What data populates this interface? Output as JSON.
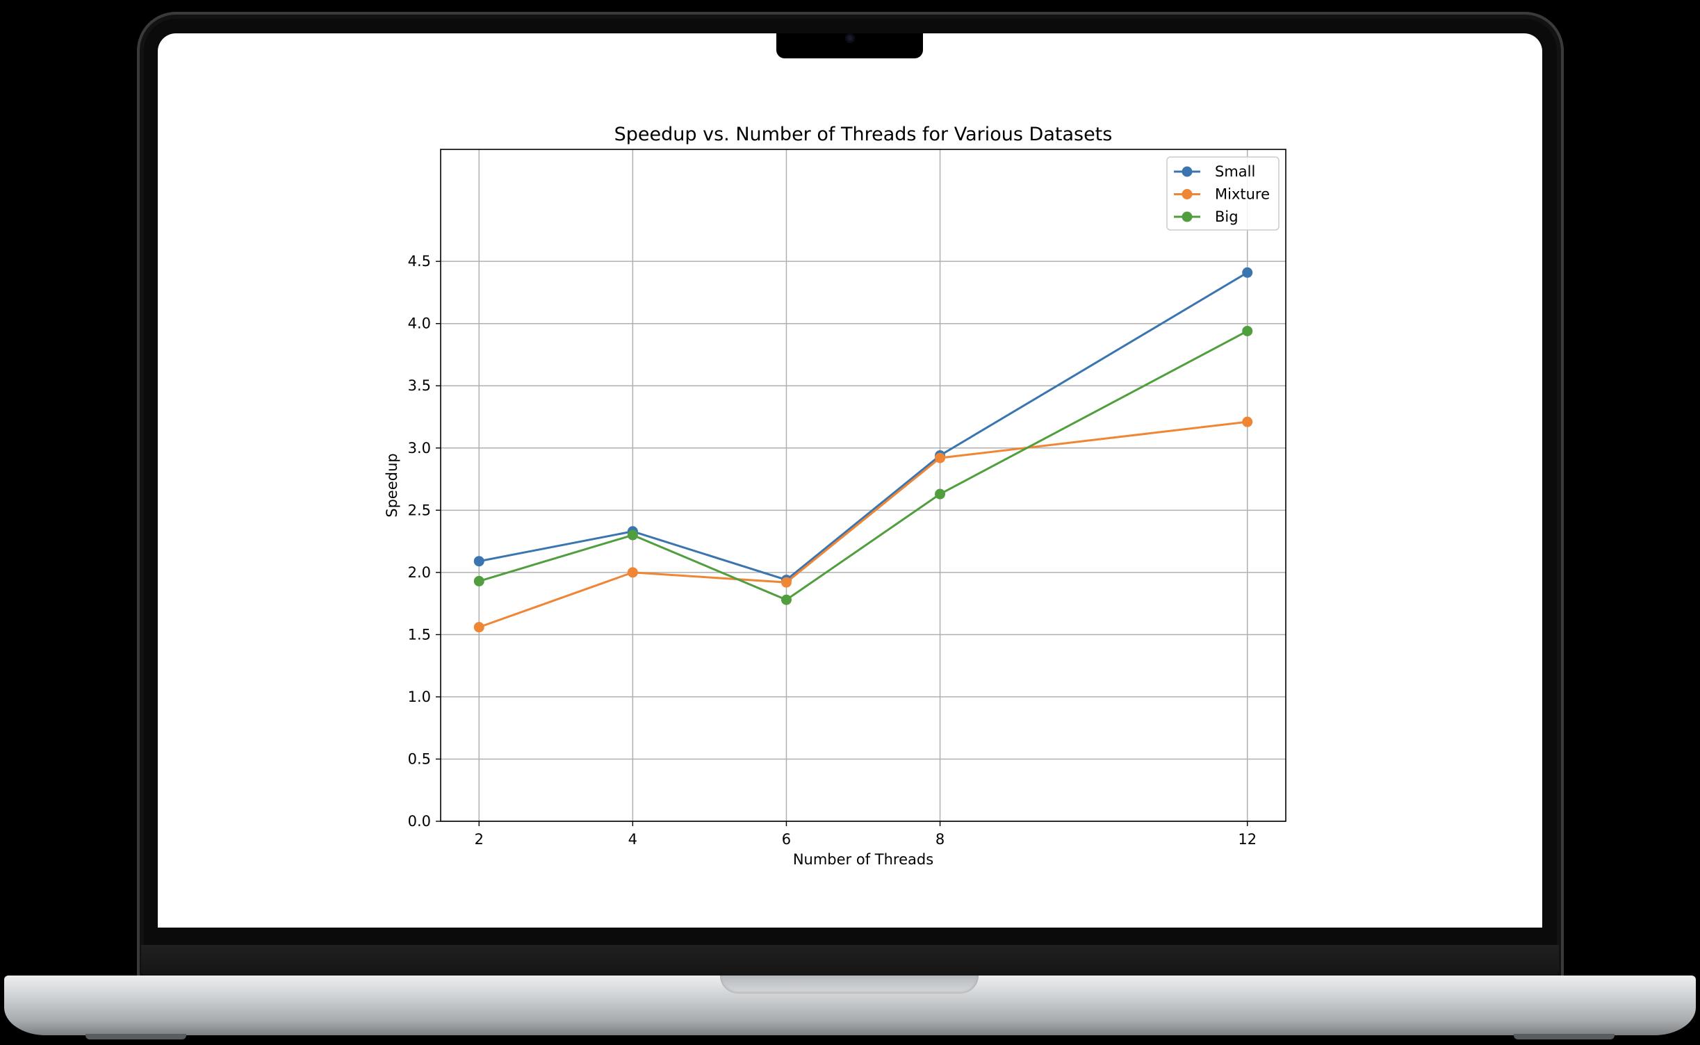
{
  "chart_data": {
    "type": "line",
    "title": "Speedup vs. Number of Threads for Various Datasets",
    "xlabel": "Number of Threads",
    "ylabel": "Speedup",
    "x": [
      2,
      4,
      6,
      8,
      12
    ],
    "xticks": [
      "2",
      "4",
      "6",
      "8",
      "12"
    ],
    "xlim": [
      1.5,
      12.5
    ],
    "ylim": [
      0,
      5.4
    ],
    "yticks": [
      "0.0",
      "0.5",
      "1.0",
      "1.5",
      "2.0",
      "2.5",
      "3.0",
      "3.5",
      "4.0",
      "4.5"
    ],
    "grid": true,
    "legend_position": "top-right",
    "series": [
      {
        "name": "Small",
        "color": "#3b75af",
        "values": [
          2.09,
          2.33,
          1.94,
          2.94,
          4.41
        ]
      },
      {
        "name": "Mixture",
        "color": "#ef8636",
        "values": [
          1.56,
          2.0,
          1.92,
          2.92,
          3.21
        ]
      },
      {
        "name": "Big",
        "color": "#519e3e",
        "values": [
          1.93,
          2.3,
          1.78,
          2.63,
          3.94
        ]
      }
    ]
  }
}
